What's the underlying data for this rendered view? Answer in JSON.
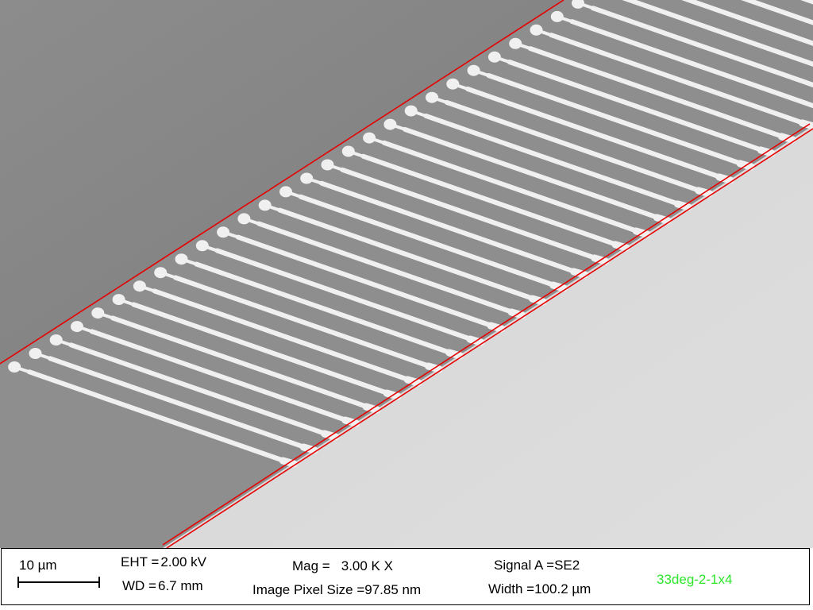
{
  "colors": {
    "substrate": "#8a8a8a",
    "background": "#d8d8d8",
    "wire": "#f0f0f0",
    "annotation_line": "#e60000",
    "label_accent": "#2ee62e"
  },
  "databar": {
    "scale_bar_label": "10 µm",
    "eht_label": "EHT = ",
    "eht_value": "2.00 kV",
    "wd_label": "WD = ",
    "wd_value": "6.7 mm",
    "mag_label": "Mag = ",
    "mag_value": "3.00 K X",
    "pixel_size_label": "Image Pixel Size = ",
    "pixel_size_value": "97.85 nm",
    "signal_label": "Signal A = ",
    "signal_value": "SE2",
    "width_label": "Width = ",
    "width_value": "100.2 µm",
    "sample_label": "33deg-2-1x4"
  }
}
